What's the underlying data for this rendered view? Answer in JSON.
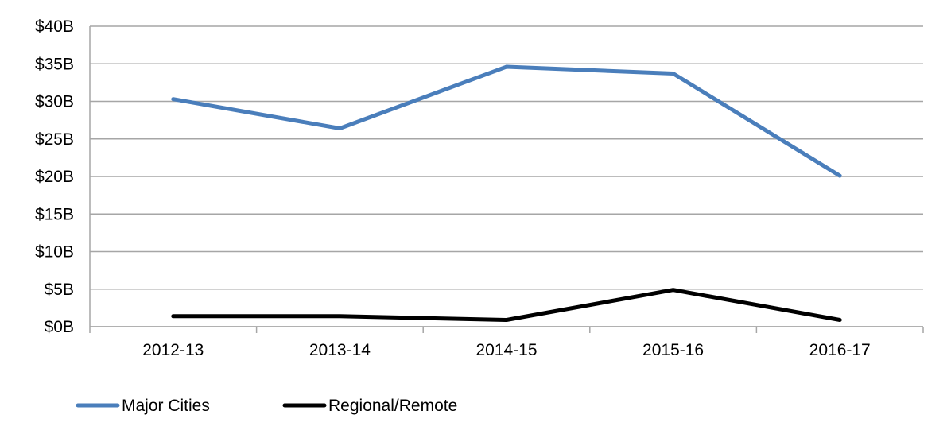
{
  "chart_data": {
    "type": "line",
    "title": "",
    "xlabel": "",
    "ylabel": "",
    "categories": [
      "2012-13",
      "2013-14",
      "2014-15",
      "2015-16",
      "2016-17"
    ],
    "y_ticks": [
      0,
      5,
      10,
      15,
      20,
      25,
      30,
      35,
      40
    ],
    "y_tick_labels": [
      "$0B",
      "$5B",
      "$10B",
      "$15B",
      "$20B",
      "$25B",
      "$30B",
      "$35B",
      "$40B"
    ],
    "ylim": [
      0,
      40
    ],
    "grid": true,
    "legend_position": "bottom-left",
    "series": [
      {
        "name": "Major Cities",
        "color": "#4a7ebb",
        "values": [
          30.3,
          26.4,
          34.6,
          33.7,
          20.1
        ]
      },
      {
        "name": "Regional/Remote",
        "color": "#000000",
        "values": [
          1.4,
          1.4,
          0.9,
          4.9,
          0.9
        ]
      }
    ]
  }
}
